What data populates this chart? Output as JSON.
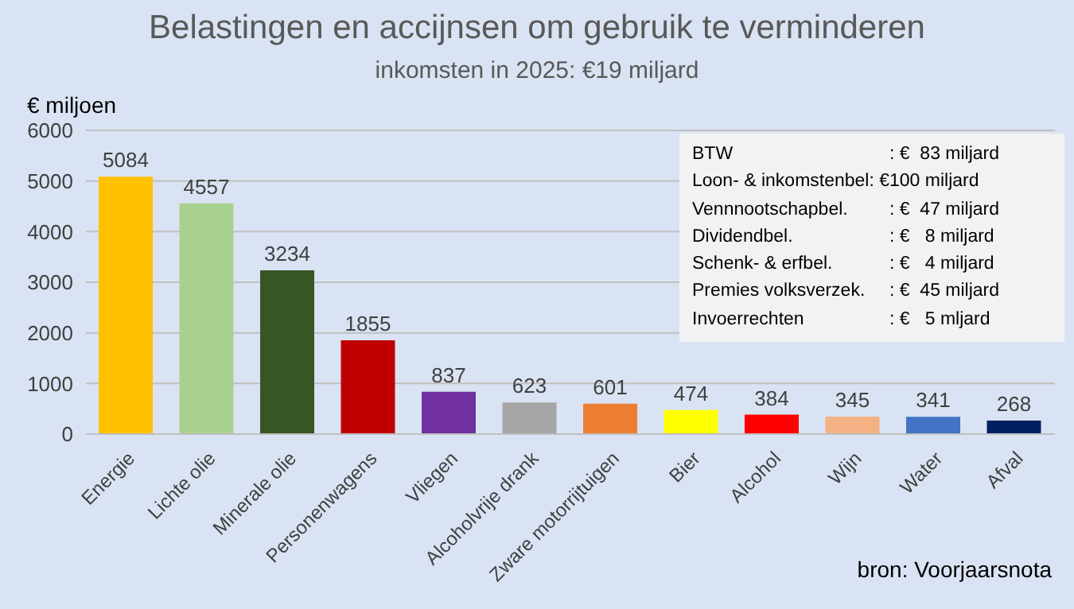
{
  "chart_data": {
    "type": "bar",
    "title": "Belastingen en accijnsen om gebruik te verminderen",
    "subtitle": "inkomsten in 2025: €19 miljard",
    "ylabel": "€ miljoen",
    "categories": [
      "Energie",
      "Lichte olie",
      "Minerale olie",
      "Personenwagens",
      "Vliegen",
      "Alcoholvrije drank",
      "Zware motorrijtuigen",
      "Bier",
      "Alcohol",
      "Wijn",
      "Water",
      "Afval"
    ],
    "values": [
      5084,
      4557,
      3234,
      1855,
      837,
      623,
      601,
      474,
      384,
      345,
      341,
      268
    ],
    "colors": [
      "#ffc000",
      "#a9d18e",
      "#375623",
      "#c00000",
      "#7030a0",
      "#a6a6a6",
      "#ed7d31",
      "#ffff00",
      "#ff0000",
      "#f4b183",
      "#4472c4",
      "#002060"
    ],
    "ylim": [
      0,
      6000
    ],
    "yticks": [
      0,
      1000,
      2000,
      3000,
      4000,
      5000,
      6000
    ],
    "grid": "y",
    "data_labels": true,
    "annotations": [
      "BTW : €  83 miljard",
      "Loon- & inkomstenbel: €100 miljard",
      "Vennnootschapbel. : €  47 miljard",
      "Dividendbel. : €   8 miljard",
      "Schenk- & erfbel. : €   4 miljard",
      "Premies volksverzek. : €  45 miljard",
      "Invoerrechten : €   5 mljard",
      "bron: Voorjaarsnota"
    ]
  }
}
